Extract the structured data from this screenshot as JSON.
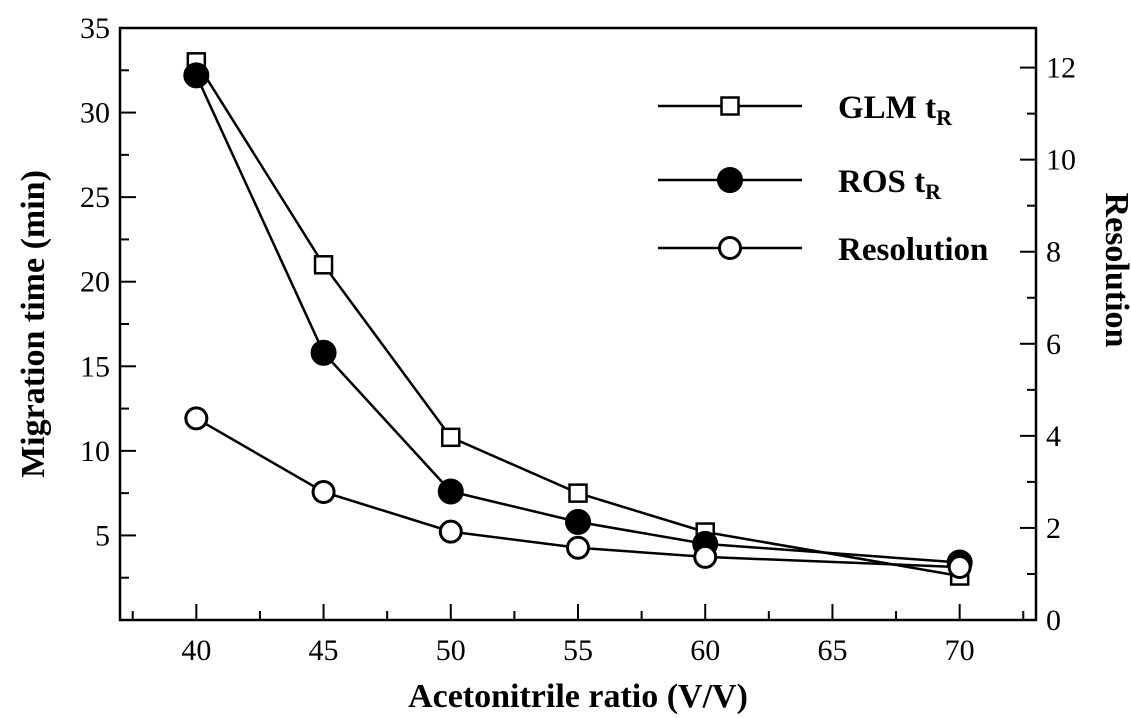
{
  "chart_data": {
    "type": "line",
    "xlabel": "Acetonitrile ratio (V/V)",
    "ylabel": "Migration time (min)",
    "y2label": "Resolution",
    "xlim": [
      37,
      73
    ],
    "ylim": [
      0,
      35
    ],
    "y2lim": [
      0,
      12.86
    ],
    "xticks": [
      40,
      45,
      50,
      55,
      60,
      65,
      70
    ],
    "xtick_labels": [
      "40",
      "45",
      "50",
      "55",
      "60",
      "65",
      "70"
    ],
    "yticks": [
      5,
      10,
      15,
      20,
      25,
      30,
      35
    ],
    "ytick_labels": [
      "5",
      "10",
      "15",
      "20",
      "25",
      "30",
      "35"
    ],
    "y2ticks": [
      0,
      2,
      4,
      6,
      8,
      10,
      12
    ],
    "y2tick_labels": [
      "0",
      "2",
      "4",
      "6",
      "8",
      "10",
      "12"
    ],
    "grid": false,
    "legend_position": "top-right",
    "series": [
      {
        "name": "GLM",
        "name_sub": "R",
        "name_main": "GLM t",
        "marker": "open-square",
        "axis": "left",
        "x": [
          40,
          45,
          50,
          55,
          60,
          70
        ],
        "y": [
          33.0,
          21.0,
          10.8,
          7.5,
          5.2,
          2.6
        ]
      },
      {
        "name": "ROS",
        "name_main": "ROS  t",
        "name_sub": "R",
        "marker": "filled-circle",
        "axis": "left",
        "x": [
          40,
          45,
          50,
          55,
          60,
          70
        ],
        "y": [
          32.2,
          15.8,
          7.6,
          5.8,
          4.5,
          3.4
        ]
      },
      {
        "name": "Resolution",
        "name_main": "Resolution",
        "name_sub": "",
        "marker": "open-circle",
        "axis": "right",
        "x": [
          40,
          45,
          50,
          55,
          60,
          70
        ],
        "y": [
          4.38,
          2.78,
          1.92,
          1.57,
          1.37,
          1.15
        ]
      }
    ]
  }
}
